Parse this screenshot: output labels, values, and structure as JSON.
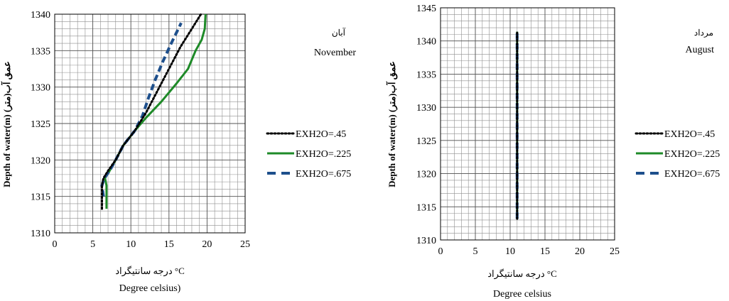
{
  "chart_data": [
    {
      "type": "line",
      "title": "November",
      "title_fa": "آبان",
      "xlabel": "Degree celsius)",
      "xlabel_fa": "درجه سانتیگراد °C",
      "ylabel": "Depth of water(m) (عمق آب(متر",
      "xlim": [
        0,
        25
      ],
      "ylim": [
        1310,
        1340
      ],
      "xticks": [
        0,
        5,
        10,
        15,
        20,
        25
      ],
      "yticks": [
        1310,
        1315,
        1320,
        1325,
        1330,
        1335,
        1340
      ],
      "grid": true,
      "legend_position": "right",
      "series": [
        {
          "name": "EXH2O=.45",
          "color": "#000000",
          "style": "dotted",
          "x": [
            6.2,
            6.2,
            6.4,
            7.0,
            8.0,
            9.0,
            10.5,
            12.0,
            13.5,
            15.0,
            16.5,
            18.0,
            19.2
          ],
          "y": [
            1313.3,
            1316.5,
            1317.5,
            1318.5,
            1320.0,
            1322.0,
            1324.0,
            1326.5,
            1329.5,
            1332.5,
            1335.5,
            1338.0,
            1340.0
          ]
        },
        {
          "name": "EXH2O=.225",
          "color": "#1e8a28",
          "style": "solid",
          "x": [
            6.8,
            6.8,
            6.6,
            7.2,
            8.0,
            9.0,
            10.5,
            12.0,
            14.0,
            16.0,
            17.5,
            18.5,
            19.3,
            19.7,
            19.8
          ],
          "y": [
            1313.3,
            1316.5,
            1317.5,
            1318.5,
            1320.0,
            1322.0,
            1324.0,
            1325.8,
            1328.0,
            1330.5,
            1332.5,
            1335.0,
            1336.5,
            1338.0,
            1340.0
          ]
        },
        {
          "name": "EXH2O=.675",
          "color": "#1d4f8c",
          "style": "dashed",
          "x": [
            6.4,
            6.2,
            6.5,
            7.2,
            8.0,
            9.0,
            10.5,
            11.5,
            12.3,
            13.2,
            14.2,
            15.3,
            16.6
          ],
          "y": [
            1315.0,
            1316.5,
            1317.5,
            1318.5,
            1320.0,
            1322.0,
            1324.0,
            1326.0,
            1328.5,
            1331.0,
            1333.5,
            1336.0,
            1338.8
          ]
        }
      ]
    },
    {
      "type": "line",
      "title": "August",
      "title_fa": "مرداد",
      "xlabel": "Degree celsius",
      "xlabel_fa": "درجه سانتیگراد °C",
      "ylabel": "Depth of water(m) (عمق آب(متر",
      "xlim": [
        0,
        25
      ],
      "ylim": [
        1310,
        1345
      ],
      "xticks": [
        0,
        5,
        10,
        15,
        20,
        25
      ],
      "yticks": [
        1310,
        1315,
        1320,
        1325,
        1330,
        1335,
        1340,
        1345
      ],
      "grid": true,
      "legend_position": "right",
      "series": [
        {
          "name": "EXH2O=.45",
          "color": "#000000",
          "style": "dotted",
          "x": [
            11.0,
            11.0,
            11.0,
            11.0
          ],
          "y": [
            1313.2,
            1325.0,
            1335.0,
            1341.4
          ]
        },
        {
          "name": "EXH2O=.225",
          "color": "#1e8a28",
          "style": "solid",
          "x": [
            11.0,
            11.0,
            11.0,
            11.0
          ],
          "y": [
            1313.2,
            1325.0,
            1335.0,
            1341.4
          ]
        },
        {
          "name": "EXH2O=.675",
          "color": "#1d4f8c",
          "style": "dashed",
          "x": [
            11.0,
            11.0,
            11.0,
            11.0
          ],
          "y": [
            1313.2,
            1325.0,
            1335.0,
            1341.4
          ]
        }
      ]
    }
  ]
}
